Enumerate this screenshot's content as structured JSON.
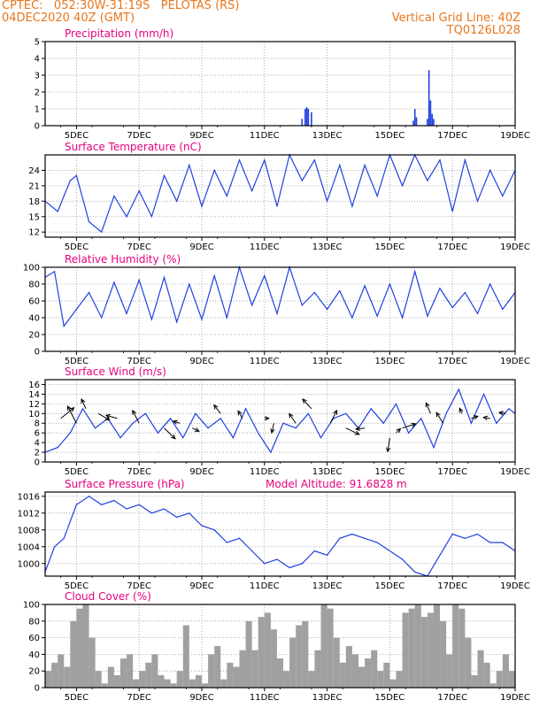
{
  "header": {
    "line1": "CPTEC:   052:30W-31:19S   PELOTAS (RS)",
    "line2": "04DEC2020 40Z (GMT)",
    "grid_note": "Vertical Grid Line: 40Z",
    "code": "TQ0126L028"
  },
  "colors": {
    "title": "#e6007e",
    "header": "#e8761c",
    "series": "#2040e0",
    "cloud": "#a0a0a0",
    "grid": "#999999"
  },
  "x_ticks": [
    "5DEC",
    "7DEC",
    "9DEC",
    "11DEC",
    "13DEC",
    "15DEC",
    "17DEC",
    "19DEC"
  ],
  "chart_data": [
    {
      "type": "bar",
      "title": "Precipitation (mm/h)",
      "x_range": [
        4.0,
        19.0
      ],
      "ylim": [
        0,
        5
      ],
      "yticks": [
        0,
        1,
        2,
        3,
        4,
        5
      ],
      "grid": true,
      "x": [
        12.2,
        12.3,
        12.35,
        12.4,
        12.5,
        15.75,
        15.8,
        15.85,
        16.2,
        16.25,
        16.3,
        16.35,
        16.4
      ],
      "values": [
        0.4,
        1.0,
        1.1,
        1.0,
        0.8,
        0.3,
        1.0,
        0.5,
        0.4,
        3.3,
        1.5,
        0.7,
        0.4
      ]
    },
    {
      "type": "line",
      "title": "Surface Temperature (nC)",
      "x_range": [
        4.0,
        19.0
      ],
      "ylim": [
        11,
        27
      ],
      "yticks": [
        12,
        15,
        18,
        21,
        24
      ],
      "grid": true,
      "x": [
        4.0,
        4.4,
        4.8,
        5.0,
        5.4,
        5.8,
        6.2,
        6.6,
        7.0,
        7.4,
        7.8,
        8.2,
        8.6,
        9.0,
        9.4,
        9.8,
        10.2,
        10.6,
        11.0,
        11.4,
        11.8,
        12.2,
        12.6,
        13.0,
        13.4,
        13.8,
        14.2,
        14.6,
        15.0,
        15.4,
        15.8,
        16.2,
        16.6,
        17.0,
        17.4,
        17.8,
        18.2,
        18.6,
        19.0
      ],
      "y": [
        18,
        16,
        22,
        23,
        14,
        12,
        19,
        15,
        20,
        15,
        23,
        18,
        25,
        17,
        24,
        19,
        26,
        20,
        26,
        17,
        27,
        22,
        26,
        18,
        25,
        17,
        25,
        19,
        27,
        21,
        27,
        22,
        26,
        16,
        26,
        18,
        24,
        19,
        24
      ]
    },
    {
      "type": "line",
      "title": "Relative Humidity (%)",
      "x_range": [
        4.0,
        19.0
      ],
      "ylim": [
        0,
        100
      ],
      "yticks": [
        0,
        20,
        40,
        60,
        80,
        100
      ],
      "grid": true,
      "x": [
        4.0,
        4.3,
        4.6,
        5.0,
        5.4,
        5.8,
        6.2,
        6.6,
        7.0,
        7.4,
        7.8,
        8.2,
        8.6,
        9.0,
        9.4,
        9.8,
        10.2,
        10.6,
        11.0,
        11.4,
        11.8,
        12.2,
        12.6,
        13.0,
        13.4,
        13.8,
        14.2,
        14.6,
        15.0,
        15.4,
        15.8,
        16.2,
        16.6,
        17.0,
        17.4,
        17.8,
        18.2,
        18.6,
        19.0
      ],
      "y": [
        88,
        95,
        30,
        50,
        70,
        40,
        82,
        45,
        85,
        38,
        88,
        35,
        80,
        38,
        90,
        40,
        100,
        55,
        90,
        45,
        100,
        55,
        70,
        50,
        72,
        40,
        78,
        42,
        80,
        40,
        95,
        42,
        75,
        52,
        70,
        45,
        80,
        50,
        70
      ]
    },
    {
      "type": "line",
      "title": "Surface Wind (m/s)",
      "x_range": [
        4.0,
        19.0
      ],
      "ylim": [
        0,
        17
      ],
      "yticks": [
        0,
        2,
        4,
        6,
        8,
        10,
        12,
        14,
        16
      ],
      "grid": true,
      "x": [
        4.0,
        4.4,
        4.8,
        5.2,
        5.6,
        6.0,
        6.4,
        6.8,
        7.2,
        7.6,
        8.0,
        8.4,
        8.8,
        9.2,
        9.6,
        10.0,
        10.4,
        10.8,
        11.2,
        11.6,
        12.0,
        12.4,
        12.8,
        13.2,
        13.6,
        14.0,
        14.4,
        14.8,
        15.2,
        15.6,
        16.0,
        16.4,
        16.8,
        17.2,
        17.6,
        18.0,
        18.4,
        18.8,
        19.0
      ],
      "y": [
        2,
        3,
        6,
        11,
        7,
        9,
        5,
        8,
        10,
        6,
        9,
        5,
        10,
        7,
        9,
        5,
        11,
        6,
        2,
        8,
        7,
        10,
        5,
        9,
        10,
        7,
        11,
        8,
        12,
        6,
        9,
        3,
        10,
        15,
        8,
        14,
        8,
        11,
        10
      ],
      "arrows": [
        {
          "x": 4.5,
          "y": 9,
          "dx": 0.6,
          "dy": 1.0
        },
        {
          "x": 5.0,
          "y": 8,
          "dx": -0.4,
          "dy": 1.6
        },
        {
          "x": 5.3,
          "y": 11,
          "dx": -0.2,
          "dy": 0.9
        },
        {
          "x": 5.7,
          "y": 10,
          "dx": 0.5,
          "dy": -0.6
        },
        {
          "x": 6.3,
          "y": 9,
          "dx": -0.5,
          "dy": 0.3
        },
        {
          "x": 7.0,
          "y": 8,
          "dx": -0.3,
          "dy": 1.2
        },
        {
          "x": 7.8,
          "y": 7,
          "dx": 0.5,
          "dy": -1.0
        },
        {
          "x": 8.3,
          "y": 8,
          "dx": -0.3,
          "dy": 0.2
        },
        {
          "x": 8.7,
          "y": 7,
          "dx": 0.3,
          "dy": -0.3
        },
        {
          "x": 9.6,
          "y": 10,
          "dx": -0.3,
          "dy": 0.8
        },
        {
          "x": 10.3,
          "y": 9,
          "dx": -0.2,
          "dy": 0.7
        },
        {
          "x": 11.0,
          "y": 9,
          "dx": 0.2,
          "dy": 0.0
        },
        {
          "x": 11.3,
          "y": 8,
          "dx": -0.1,
          "dy": -0.9
        },
        {
          "x": 12.0,
          "y": 8,
          "dx": -0.3,
          "dy": 0.9
        },
        {
          "x": 12.5,
          "y": 11,
          "dx": -0.4,
          "dy": 0.9
        },
        {
          "x": 13.1,
          "y": 8,
          "dx": 0.3,
          "dy": 1.2
        },
        {
          "x": 13.6,
          "y": 7,
          "dx": 0.6,
          "dy": -0.6
        },
        {
          "x": 14.2,
          "y": 7,
          "dx": -0.4,
          "dy": -0.1
        },
        {
          "x": 15.0,
          "y": 5,
          "dx": -0.1,
          "dy": -1.3
        },
        {
          "x": 15.2,
          "y": 6,
          "dx": 0.2,
          "dy": 0.4
        },
        {
          "x": 15.4,
          "y": 7,
          "dx": 0.6,
          "dy": 0.4
        },
        {
          "x": 16.3,
          "y": 10,
          "dx": -0.2,
          "dy": 1.0
        },
        {
          "x": 16.7,
          "y": 8,
          "dx": -0.3,
          "dy": 1.0
        },
        {
          "x": 17.3,
          "y": 10,
          "dx": -0.1,
          "dy": 0.5
        },
        {
          "x": 17.6,
          "y": 9,
          "dx": 0.3,
          "dy": 0.2
        },
        {
          "x": 18.2,
          "y": 9,
          "dx": -0.3,
          "dy": 0.1
        },
        {
          "x": 18.7,
          "y": 10,
          "dx": -0.3,
          "dy": 0.1
        }
      ]
    },
    {
      "type": "line",
      "title": "Surface Pressure (hPa)",
      "annotation": "Model Altitude: 91.6828 m",
      "x_range": [
        4.0,
        19.0
      ],
      "ylim": [
        997,
        1017
      ],
      "yticks": [
        1000,
        1004,
        1008,
        1012,
        1016
      ],
      "grid": true,
      "x": [
        4.0,
        4.3,
        4.6,
        5.0,
        5.4,
        5.8,
        6.2,
        6.6,
        7.0,
        7.4,
        7.8,
        8.2,
        8.6,
        9.0,
        9.4,
        9.8,
        10.2,
        10.6,
        11.0,
        11.4,
        11.8,
        12.2,
        12.6,
        13.0,
        13.4,
        13.8,
        14.2,
        14.6,
        15.0,
        15.4,
        15.8,
        16.2,
        16.6,
        17.0,
        17.4,
        17.8,
        18.2,
        18.6,
        19.0
      ],
      "y": [
        998,
        1004,
        1006,
        1014,
        1016,
        1014,
        1015,
        1013,
        1014,
        1012,
        1013,
        1011,
        1012,
        1009,
        1008,
        1005,
        1006,
        1003,
        1000,
        1001,
        999,
        1000,
        1003,
        1002,
        1006,
        1007,
        1006,
        1005,
        1003,
        1001,
        998,
        997,
        1002,
        1007,
        1006,
        1007,
        1005,
        1005,
        1003
      ]
    },
    {
      "type": "bar",
      "title": "Cloud Cover (%)",
      "x_range": [
        4.0,
        19.0
      ],
      "ylim": [
        0,
        100
      ],
      "yticks": [
        0,
        20,
        40,
        60,
        80,
        100
      ],
      "grid": true,
      "x": [
        4.1,
        4.3,
        4.5,
        4.7,
        4.9,
        5.1,
        5.3,
        5.5,
        5.7,
        5.9,
        6.1,
        6.3,
        6.5,
        6.7,
        6.9,
        7.1,
        7.3,
        7.5,
        7.7,
        7.9,
        8.1,
        8.3,
        8.5,
        8.7,
        8.9,
        9.1,
        9.3,
        9.5,
        9.7,
        9.9,
        10.1,
        10.3,
        10.5,
        10.7,
        10.9,
        11.1,
        11.3,
        11.5,
        11.7,
        11.9,
        12.1,
        12.3,
        12.5,
        12.7,
        12.9,
        13.1,
        13.3,
        13.5,
        13.7,
        13.9,
        14.1,
        14.3,
        14.5,
        14.7,
        14.9,
        15.1,
        15.3,
        15.5,
        15.7,
        15.9,
        16.1,
        16.3,
        16.5,
        16.7,
        16.9,
        17.1,
        17.3,
        17.5,
        17.7,
        17.9,
        18.1,
        18.3,
        18.5,
        18.7,
        18.9
      ],
      "values": [
        20,
        30,
        40,
        25,
        80,
        95,
        100,
        60,
        20,
        5,
        25,
        15,
        35,
        40,
        10,
        20,
        30,
        40,
        15,
        10,
        5,
        20,
        75,
        10,
        15,
        5,
        40,
        50,
        10,
        30,
        25,
        45,
        80,
        45,
        85,
        90,
        70,
        35,
        20,
        60,
        75,
        80,
        20,
        45,
        100,
        95,
        60,
        30,
        50,
        40,
        25,
        35,
        45,
        20,
        30,
        10,
        20,
        90,
        95,
        100,
        85,
        90,
        100,
        80,
        40,
        100,
        95,
        60,
        15,
        45,
        30,
        5,
        20,
        40,
        20
      ]
    }
  ]
}
